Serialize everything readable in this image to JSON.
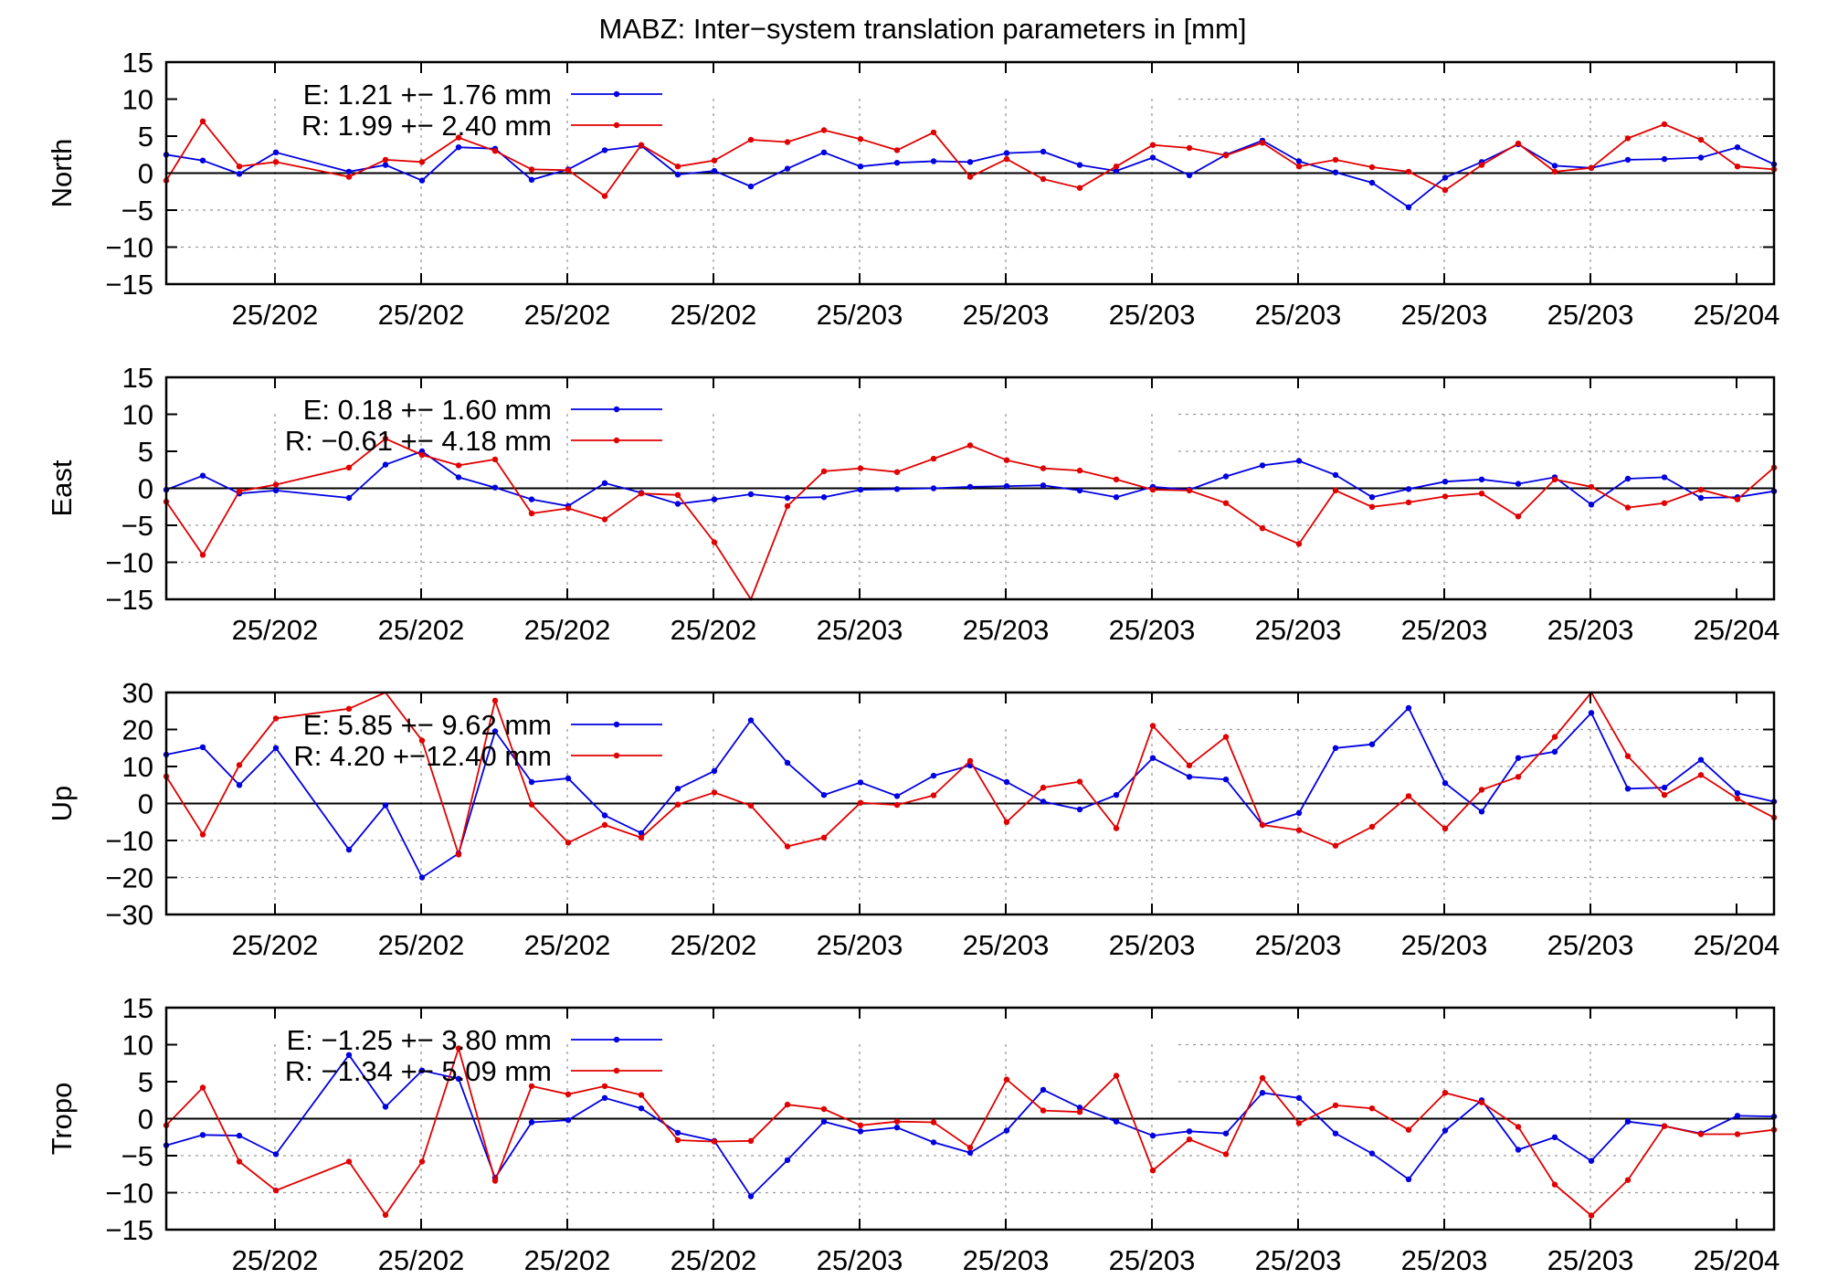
{
  "title": "MABZ: Inter−system translation parameters in [mm]",
  "colors": {
    "E": "#0000e0",
    "R": "#e00000"
  },
  "chart_data": [
    {
      "type": "line",
      "ylabel": "North",
      "ylim": [
        -15,
        15
      ],
      "yticks": [
        15,
        10,
        5,
        0,
        -5,
        -10,
        -15
      ],
      "xticklabels": [
        "25/202",
        "25/202",
        "25/202",
        "25/202",
        "25/203",
        "25/203",
        "25/203",
        "25/203",
        "25/203",
        "25/203",
        "25/204"
      ],
      "grid": true,
      "legend": [
        "E:   1.21 +− 1.76 mm",
        "R:   1.99 +− 2.40 mm"
      ],
      "series": [
        {
          "name": "E",
          "values": [
            2.5,
            1.7,
            -0.1,
            2.8,
            null,
            0.2,
            1.1,
            -1.0,
            3.5,
            3.3,
            -0.9,
            0.5,
            3.1,
            3.7,
            -0.2,
            0.3,
            -1.8,
            0.6,
            2.8,
            0.9,
            1.4,
            1.6,
            1.5,
            2.7,
            2.9,
            1.1,
            0.3,
            2.1,
            -0.3,
            2.5,
            4.4,
            1.6,
            0.1,
            -1.3,
            -4.6,
            -0.6,
            1.5,
            3.9,
            1.0,
            0.7,
            1.8,
            1.9,
            2.1,
            3.5,
            1.2
          ]
        },
        {
          "name": "R",
          "values": [
            -1.0,
            7.0,
            0.9,
            1.5,
            null,
            -0.5,
            1.8,
            1.5,
            4.8,
            3.0,
            0.5,
            0.4,
            -3.1,
            3.8,
            0.9,
            1.7,
            4.5,
            4.2,
            5.8,
            4.6,
            3.1,
            5.5,
            -0.5,
            1.9,
            -0.8,
            -2.0,
            0.9,
            3.8,
            3.4,
            2.4,
            4.1,
            0.9,
            1.8,
            0.8,
            0.2,
            -2.3,
            1.1,
            4.0,
            0.2,
            0.7,
            4.7,
            6.6,
            4.5,
            0.9,
            0.5
          ]
        }
      ]
    },
    {
      "type": "line",
      "ylabel": "East",
      "ylim": [
        -15,
        15
      ],
      "yticks": [
        15,
        10,
        5,
        0,
        -5,
        -10,
        -15
      ],
      "xticklabels": [
        "25/202",
        "25/202",
        "25/202",
        "25/202",
        "25/203",
        "25/203",
        "25/203",
        "25/203",
        "25/203",
        "25/203",
        "25/204"
      ],
      "grid": true,
      "legend": [
        "E:   0.18 +− 1.60 mm",
        "R:  −0.61 +− 4.18 mm"
      ],
      "series": [
        {
          "name": "E",
          "values": [
            -0.2,
            1.7,
            -0.7,
            -0.3,
            null,
            -1.3,
            3.2,
            5.0,
            1.5,
            0.1,
            -1.5,
            -2.4,
            0.7,
            -0.6,
            -2.1,
            -1.5,
            -0.8,
            -1.3,
            -1.2,
            -0.2,
            -0.1,
            -0.0,
            0.2,
            0.3,
            0.4,
            -0.3,
            -1.2,
            0.2,
            -0.2,
            1.6,
            3.1,
            3.7,
            1.8,
            -1.2,
            -0.1,
            0.9,
            1.2,
            0.6,
            1.5,
            -2.2,
            1.3,
            1.5,
            -1.3,
            -1.2,
            -0.4
          ]
        },
        {
          "name": "R",
          "values": [
            -1.8,
            -9.0,
            -0.4,
            0.5,
            null,
            2.8,
            6.7,
            4.5,
            3.1,
            3.9,
            -3.4,
            -2.7,
            -4.2,
            -0.7,
            -0.9,
            -7.3,
            -15.5,
            -2.4,
            2.3,
            2.7,
            2.2,
            4.0,
            5.8,
            3.8,
            2.7,
            2.4,
            1.2,
            -0.2,
            -0.3,
            -2.0,
            -5.4,
            -7.5,
            -0.3,
            -2.5,
            -1.9,
            -1.1,
            -0.7,
            -3.8,
            1.2,
            0.2,
            -2.6,
            -2.0,
            -0.2,
            -1.5,
            2.8
          ]
        }
      ]
    },
    {
      "type": "line",
      "ylabel": "Up",
      "ylim": [
        -30,
        30
      ],
      "yticks": [
        30,
        20,
        10,
        0,
        -10,
        -20,
        -30
      ],
      "xticklabels": [
        "25/202",
        "25/202",
        "25/202",
        "25/202",
        "25/203",
        "25/203",
        "25/203",
        "25/203",
        "25/203",
        "25/203",
        "25/204"
      ],
      "grid": true,
      "legend": [
        "E:   5.85 +− 9.62 mm",
        "R:   4.20 +−12.40 mm"
      ],
      "series": [
        {
          "name": "E",
          "values": [
            13.2,
            15.2,
            5.0,
            15.0,
            null,
            -12.5,
            -0.5,
            -20.0,
            -13.5,
            19.5,
            5.8,
            6.8,
            -3.2,
            -8.0,
            4.0,
            8.8,
            22.5,
            11.0,
            2.3,
            5.7,
            2.0,
            7.5,
            10.3,
            5.8,
            0.5,
            -1.6,
            2.3,
            12.3,
            7.2,
            6.5,
            -5.8,
            -2.6,
            15.0,
            16.0,
            25.8,
            5.5,
            -2.2,
            12.3,
            14.0,
            24.5,
            4.0,
            4.3,
            11.8,
            2.8,
            0.5
          ]
        },
        {
          "name": "R",
          "values": [
            7.3,
            -8.4,
            10.4,
            23.0,
            null,
            25.6,
            30.4,
            17.0,
            -13.8,
            27.8,
            -0.3,
            -10.6,
            -5.8,
            -9.2,
            -0.3,
            3.0,
            -0.6,
            -11.6,
            -9.2,
            0.2,
            -0.4,
            2.2,
            11.5,
            -5.0,
            4.3,
            5.9,
            -6.7,
            21.0,
            10.3,
            18.0,
            -5.8,
            -7.2,
            -11.4,
            -6.3,
            2.0,
            -6.8,
            3.7,
            7.2,
            18.0,
            30.8,
            12.8,
            2.3,
            7.7,
            1.3,
            -3.8
          ]
        }
      ]
    },
    {
      "type": "line",
      "ylabel": "Tropo",
      "ylim": [
        -15,
        15
      ],
      "yticks": [
        15,
        10,
        5,
        0,
        -5,
        -10,
        -15
      ],
      "xticklabels": [
        "25/202",
        "25/202",
        "25/202",
        "25/202",
        "25/203",
        "25/203",
        "25/203",
        "25/203",
        "25/203",
        "25/203",
        "25/204"
      ],
      "grid": true,
      "legend": [
        "E:  −1.25 +− 3.80 mm",
        "R:  −1.34 +− 5.09 mm"
      ],
      "series": [
        {
          "name": "E",
          "values": [
            -3.6,
            -2.2,
            -2.3,
            -4.8,
            null,
            8.6,
            1.6,
            6.5,
            5.4,
            -8.0,
            -0.5,
            -0.2,
            2.8,
            1.4,
            -1.9,
            -3.0,
            -10.5,
            -5.6,
            -0.4,
            -1.7,
            -1.2,
            -3.2,
            -4.6,
            -1.6,
            3.9,
            1.5,
            -0.4,
            -2.3,
            -1.7,
            -2.0,
            3.5,
            2.8,
            -2.0,
            -4.7,
            -8.2,
            -1.6,
            2.5,
            -4.2,
            -2.5,
            -5.7,
            -0.4,
            -1.0,
            -2.0,
            0.4,
            0.3
          ]
        },
        {
          "name": "R",
          "values": [
            -0.9,
            4.2,
            -5.8,
            -9.7,
            null,
            -5.8,
            -13.0,
            -5.8,
            9.5,
            -8.4,
            4.4,
            3.3,
            4.4,
            3.2,
            -2.9,
            -3.1,
            -3.0,
            1.9,
            1.3,
            -0.9,
            -0.4,
            -0.5,
            -3.9,
            5.3,
            1.1,
            0.9,
            5.8,
            -7.0,
            -2.8,
            -4.8,
            5.5,
            -0.6,
            1.8,
            1.4,
            -1.5,
            3.5,
            2.2,
            -1.1,
            -8.9,
            -13.1,
            -8.3,
            -1.0,
            -2.1,
            -2.1,
            -1.5
          ]
        }
      ]
    }
  ]
}
